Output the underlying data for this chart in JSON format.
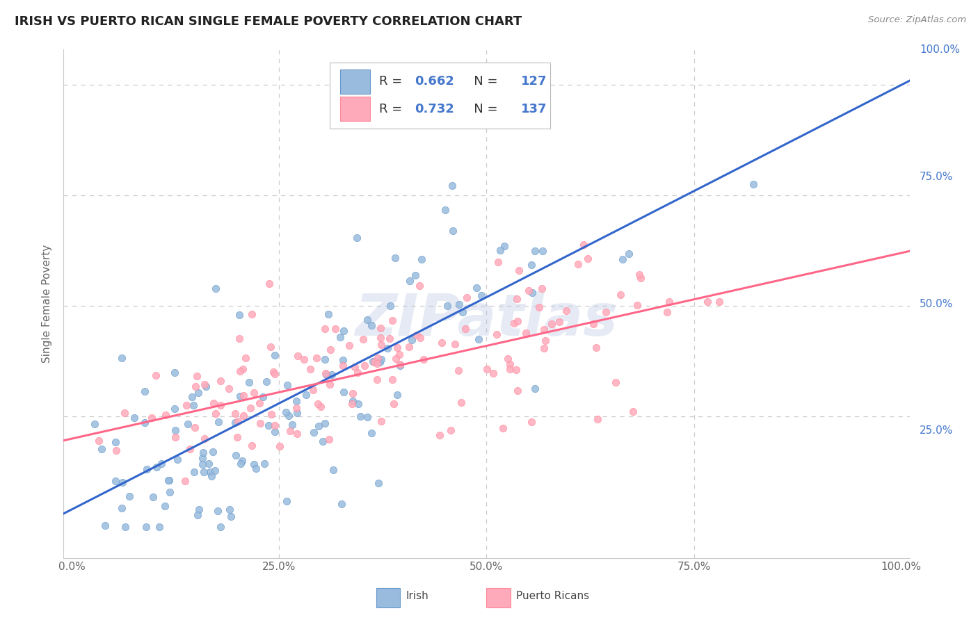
{
  "title": "IRISH VS PUERTO RICAN SINGLE FEMALE POVERTY CORRELATION CHART",
  "source_text": "Source: ZipAtlas.com",
  "ylabel": "Single Female Poverty",
  "irish_color": "#99bbdd",
  "irish_edge_color": "#6699cc",
  "puerto_rican_color": "#ffaabb",
  "puerto_rican_edge_color": "#ff8899",
  "irish_line_color": "#3366cc",
  "puerto_rican_line_color": "#ff6688",
  "irish_R": 0.662,
  "irish_N": 127,
  "puerto_rican_R": 0.732,
  "puerto_rican_N": 137,
  "watermark": "ZIPatlas",
  "background_color": "#ffffff",
  "grid_color": "#cccccc",
  "title_color": "#222222",
  "tick_label_color": "#4477cc",
  "axis_label_color": "#666666",
  "legend_label_irish": "Irish",
  "legend_label_puerto": "Puerto Ricans",
  "irish_intercept": 0.04,
  "irish_slope": 0.96,
  "puerto_intercept": 0.2,
  "puerto_slope": 0.42
}
